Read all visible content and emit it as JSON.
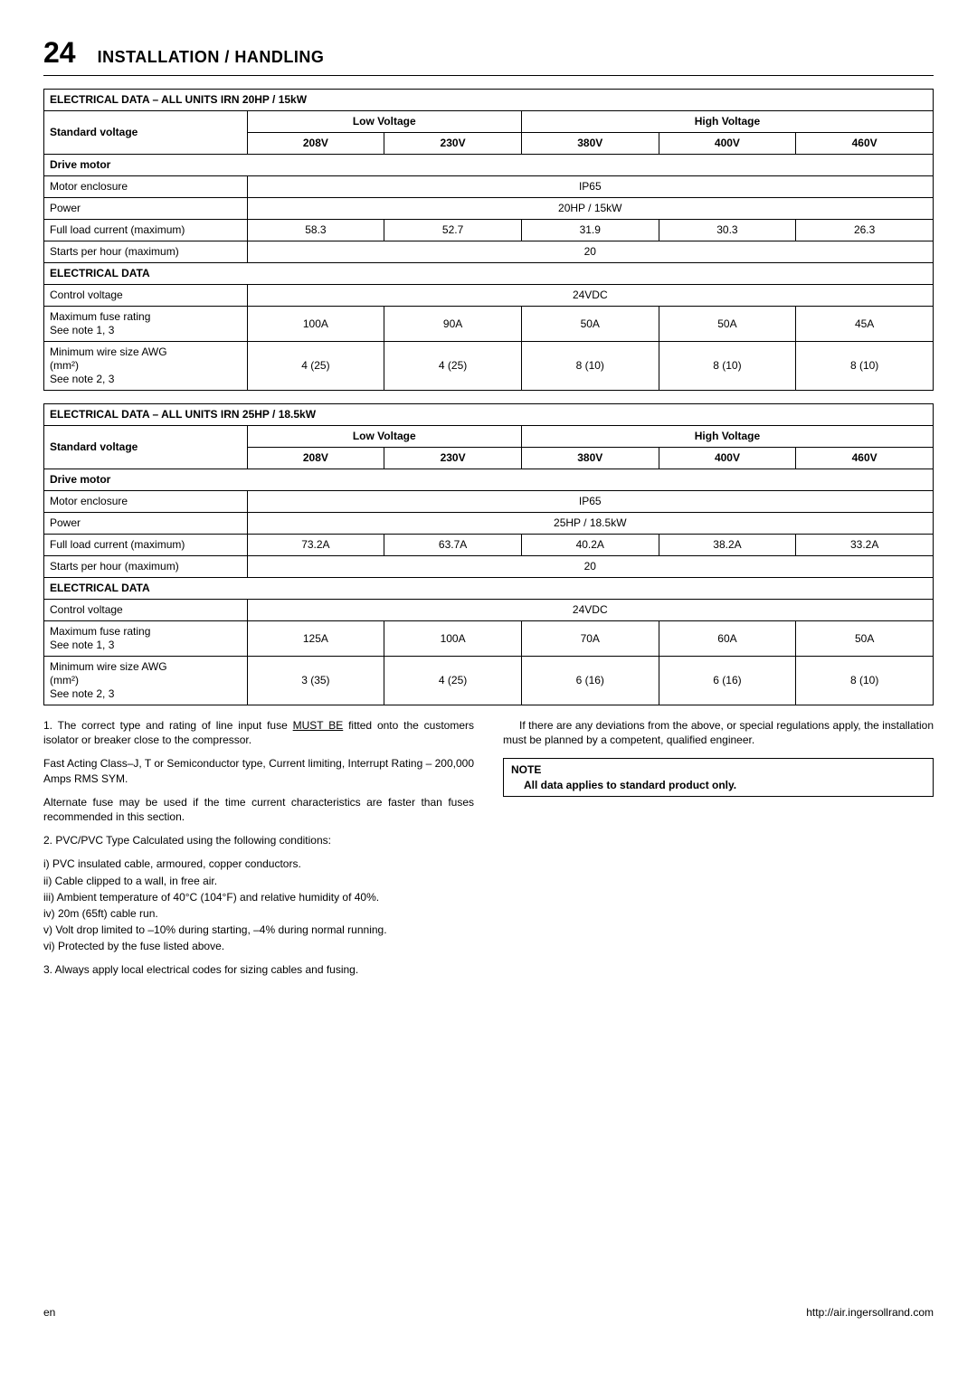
{
  "header": {
    "page_number": "24",
    "title": "INSTALLATION / HANDLING"
  },
  "tables": [
    {
      "caption": "ELECTRICAL DATA – ALL UNITS IRN 20HP / 15kW",
      "std_voltage_label": "Standard voltage",
      "low_v_label": "Low Voltage",
      "high_v_label": "High Voltage",
      "volts": [
        "208V",
        "230V",
        "380V",
        "400V",
        "460V"
      ],
      "sections": [
        {
          "title": "Drive motor",
          "rows": [
            {
              "label": "Motor enclosure",
              "span_value": "IP65"
            },
            {
              "label": "Power",
              "span_value": "20HP / 15kW"
            },
            {
              "label": "Full load current (maximum)",
              "values": [
                "58.3",
                "52.7",
                "31.9",
                "30.3",
                "26.3"
              ]
            },
            {
              "label": "Starts per hour (maximum)",
              "span_value": "20"
            }
          ]
        },
        {
          "title": "ELECTRICAL DATA",
          "rows": [
            {
              "label": "Control voltage",
              "span_value": "24VDC"
            },
            {
              "label": "Maximum fuse rating\nSee note 1, 3",
              "values": [
                "100A",
                "90A",
                "50A",
                "50A",
                "45A"
              ]
            },
            {
              "label": "Minimum wire size AWG\n(mm²)\nSee note 2, 3",
              "values": [
                "4 (25)",
                "4 (25)",
                "8 (10)",
                "8 (10)",
                "8 (10)"
              ]
            }
          ]
        }
      ]
    },
    {
      "caption": "ELECTRICAL DATA – ALL UNITS IRN 25HP / 18.5kW",
      "std_voltage_label": "Standard voltage",
      "low_v_label": "Low Voltage",
      "high_v_label": "High Voltage",
      "volts": [
        "208V",
        "230V",
        "380V",
        "400V",
        "460V"
      ],
      "sections": [
        {
          "title": "Drive motor",
          "rows": [
            {
              "label": "Motor enclosure",
              "span_value": "IP65"
            },
            {
              "label": "Power",
              "span_value": "25HP / 18.5kW"
            },
            {
              "label": "Full load current (maximum)",
              "values": [
                "73.2A",
                "63.7A",
                "40.2A",
                "38.2A",
                "33.2A"
              ]
            },
            {
              "label": "Starts per hour (maximum)",
              "span_value": "20"
            }
          ]
        },
        {
          "title": "ELECTRICAL DATA",
          "rows": [
            {
              "label": "Control voltage",
              "span_value": "24VDC"
            },
            {
              "label": "Maximum fuse rating\nSee note 1, 3",
              "values": [
                "125A",
                "100A",
                "70A",
                "60A",
                "50A"
              ]
            },
            {
              "label": "Minimum wire size AWG\n(mm²)\nSee note 2, 3",
              "values": [
                "3 (35)",
                "4 (25)",
                "6 (16)",
                "6 (16)",
                "8 (10)"
              ]
            }
          ]
        }
      ]
    }
  ],
  "notes": {
    "left": {
      "p1_pre": "1.  The correct type and rating of line input fuse ",
      "p1_u": "MUST BE",
      "p1_post": " fitted onto the customers isolator or breaker close to the compressor.",
      "p2": "Fast Acting Class–J, T or Semiconductor type, Current limiting, Interrupt Rating – 200,000 Amps RMS SYM.",
      "p3": "Alternate fuse may be used if the time current characteristics are faster than fuses recommended in this section.",
      "p4": "2.  PVC/PVC Type Calculated using the following conditions:",
      "subs": [
        "i)   PVC insulated cable, armoured, copper conductors.",
        "ii)  Cable clipped to a wall, in free air.",
        "iii) Ambient temperature of 40°C (104°F) and relative humidity of 40%.",
        "iv) 20m (65ft) cable run.",
        "v)  Volt drop limited to –10% during starting, –4% during normal running.",
        "vi) Protected by the fuse listed above."
      ],
      "p5": "3.  Always apply local electrical codes for sizing cables and fusing."
    },
    "right": {
      "p1": "If there are any deviations from the above, or special regulations apply, the installation must be planned by a competent, qualified engineer.",
      "note_title": "NOTE",
      "note_body": "All data applies to standard product only."
    }
  },
  "footer": {
    "left": "en",
    "right": "http://air.ingersollrand.com"
  }
}
